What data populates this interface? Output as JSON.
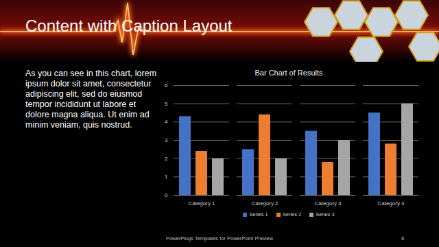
{
  "slide": {
    "title": "Content with Caption Layout",
    "caption": "As you can see in this chart, lorem ipsum dolor sit amet, consectetur adipiscing elit, sed do eiusmod tempor incididunt ut labore et dolore magna aliqua. Ut enim ad minim veniam, quis nostrud.",
    "footer": "PowerPlugs Templates for PowerPoint Preview",
    "page": "8"
  },
  "chart_data": {
    "type": "bar",
    "title": "Bar Chart of Results",
    "categories": [
      "Category 1",
      "Category 2",
      "Category 3",
      "Category 4"
    ],
    "series": [
      {
        "name": "Series 1",
        "color": "#4472c4",
        "values": [
          4.3,
          2.5,
          3.5,
          4.5
        ]
      },
      {
        "name": "Series 2",
        "color": "#ed7d31",
        "values": [
          2.4,
          4.4,
          1.8,
          2.8
        ]
      },
      {
        "name": "Series 3",
        "color": "#a5a5a5",
        "values": [
          2,
          2,
          3,
          5
        ]
      }
    ],
    "ylim": [
      0,
      6
    ],
    "yticks": [
      0,
      1,
      2,
      3,
      4,
      5,
      6
    ],
    "grid": true,
    "legend": "bottom"
  }
}
